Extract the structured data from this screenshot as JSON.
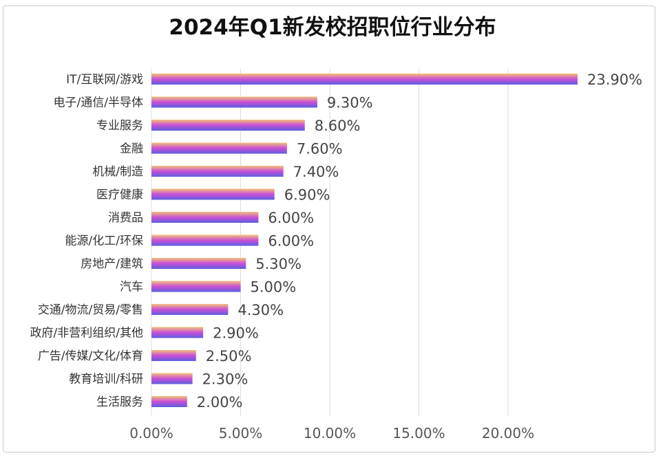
{
  "chart_data": {
    "type": "bar",
    "orientation": "horizontal",
    "title": "2024年Q1新发校招职位行业分布",
    "categories": [
      "IT/互联网/游戏",
      "电子/通信/半导体",
      "专业服务",
      "金融",
      "机械/制造",
      "医疗健康",
      "消费品",
      "能源/化工/环保",
      "房地产/建筑",
      "汽车",
      "交通/物流/贸易/零售",
      "政府/非营利组织/其他",
      "广告/传媒/文化/体育",
      "教育培训/科研",
      "生活服务"
    ],
    "values": [
      23.9,
      9.3,
      8.6,
      7.6,
      7.4,
      6.9,
      6.0,
      6.0,
      5.3,
      5.0,
      4.3,
      2.9,
      2.5,
      2.3,
      2.0
    ],
    "value_labels": [
      "23.90%",
      "9.30%",
      "8.60%",
      "7.60%",
      "7.40%",
      "6.90%",
      "6.00%",
      "6.00%",
      "5.30%",
      "5.00%",
      "4.30%",
      "2.90%",
      "2.50%",
      "2.30%",
      "2.00%"
    ],
    "x_ticks": [
      0,
      5,
      10,
      15,
      20
    ],
    "x_tick_labels": [
      "0.00%",
      "5.00%",
      "10.00%",
      "15.00%",
      "20.00%"
    ],
    "xlim": [
      0,
      25
    ],
    "xlabel": "",
    "ylabel": "",
    "grid": true,
    "colors": {
      "gradient_start": "#f5c07a",
      "gradient_mid": "#c94fd6",
      "gradient_end": "#5b5fe0",
      "grid": "#dddddd"
    }
  }
}
